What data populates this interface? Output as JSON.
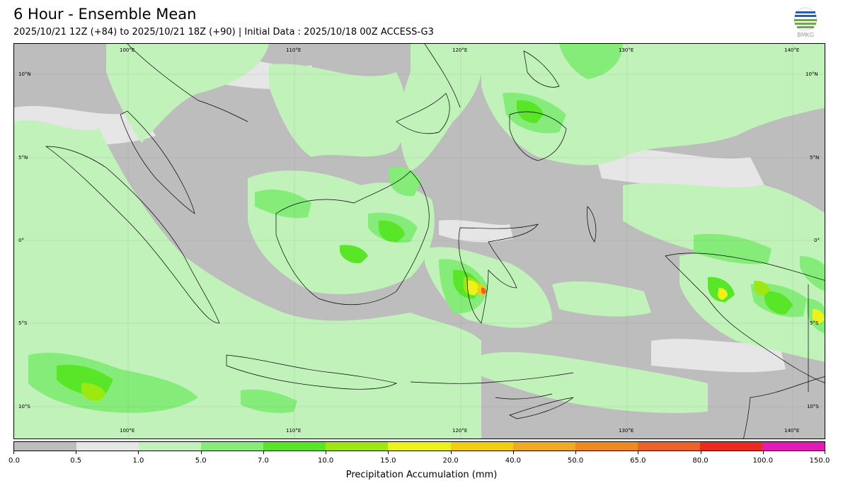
{
  "header": {
    "title": "6 Hour - Ensemble Mean",
    "subtitle": "2025/10/21 12Z (+84) to 2025/10/21 18Z (+90) | Initial Data : 2025/10/18 00Z ACCESS-G3",
    "logo_text": "BMKG"
  },
  "map": {
    "lon_labels_top": [
      "100°E",
      "110°E",
      "120°E",
      "130°E",
      "140°E"
    ],
    "lon_labels_bottom": [
      "100°E",
      "110°E",
      "120°E",
      "130°E",
      "140°E"
    ],
    "lat_labels_left": [
      "10°N",
      "5°N",
      "0°",
      "5°S",
      "10°S"
    ],
    "lat_labels_right": [
      "10°N",
      "5°N",
      "0°",
      "5°S",
      "10°S"
    ]
  },
  "colorbar": {
    "label": "Precipitation Accumulation (mm)",
    "ticks": [
      "0.0",
      "0.5",
      "1.0",
      "5.0",
      "7.0",
      "10.0",
      "15.0",
      "20.0",
      "40.0",
      "50.0",
      "65.0",
      "80.0",
      "100.0",
      "150.0"
    ],
    "colors": [
      "#bdbdbd",
      "#e6e6e6",
      "#c0f2b9",
      "#85ec7a",
      "#5ae628",
      "#9ee812",
      "#edf21a",
      "#f2ce12",
      "#eeaa22",
      "#f08a20",
      "#ec6228",
      "#ec2a22",
      "#e21ab6"
    ]
  }
}
